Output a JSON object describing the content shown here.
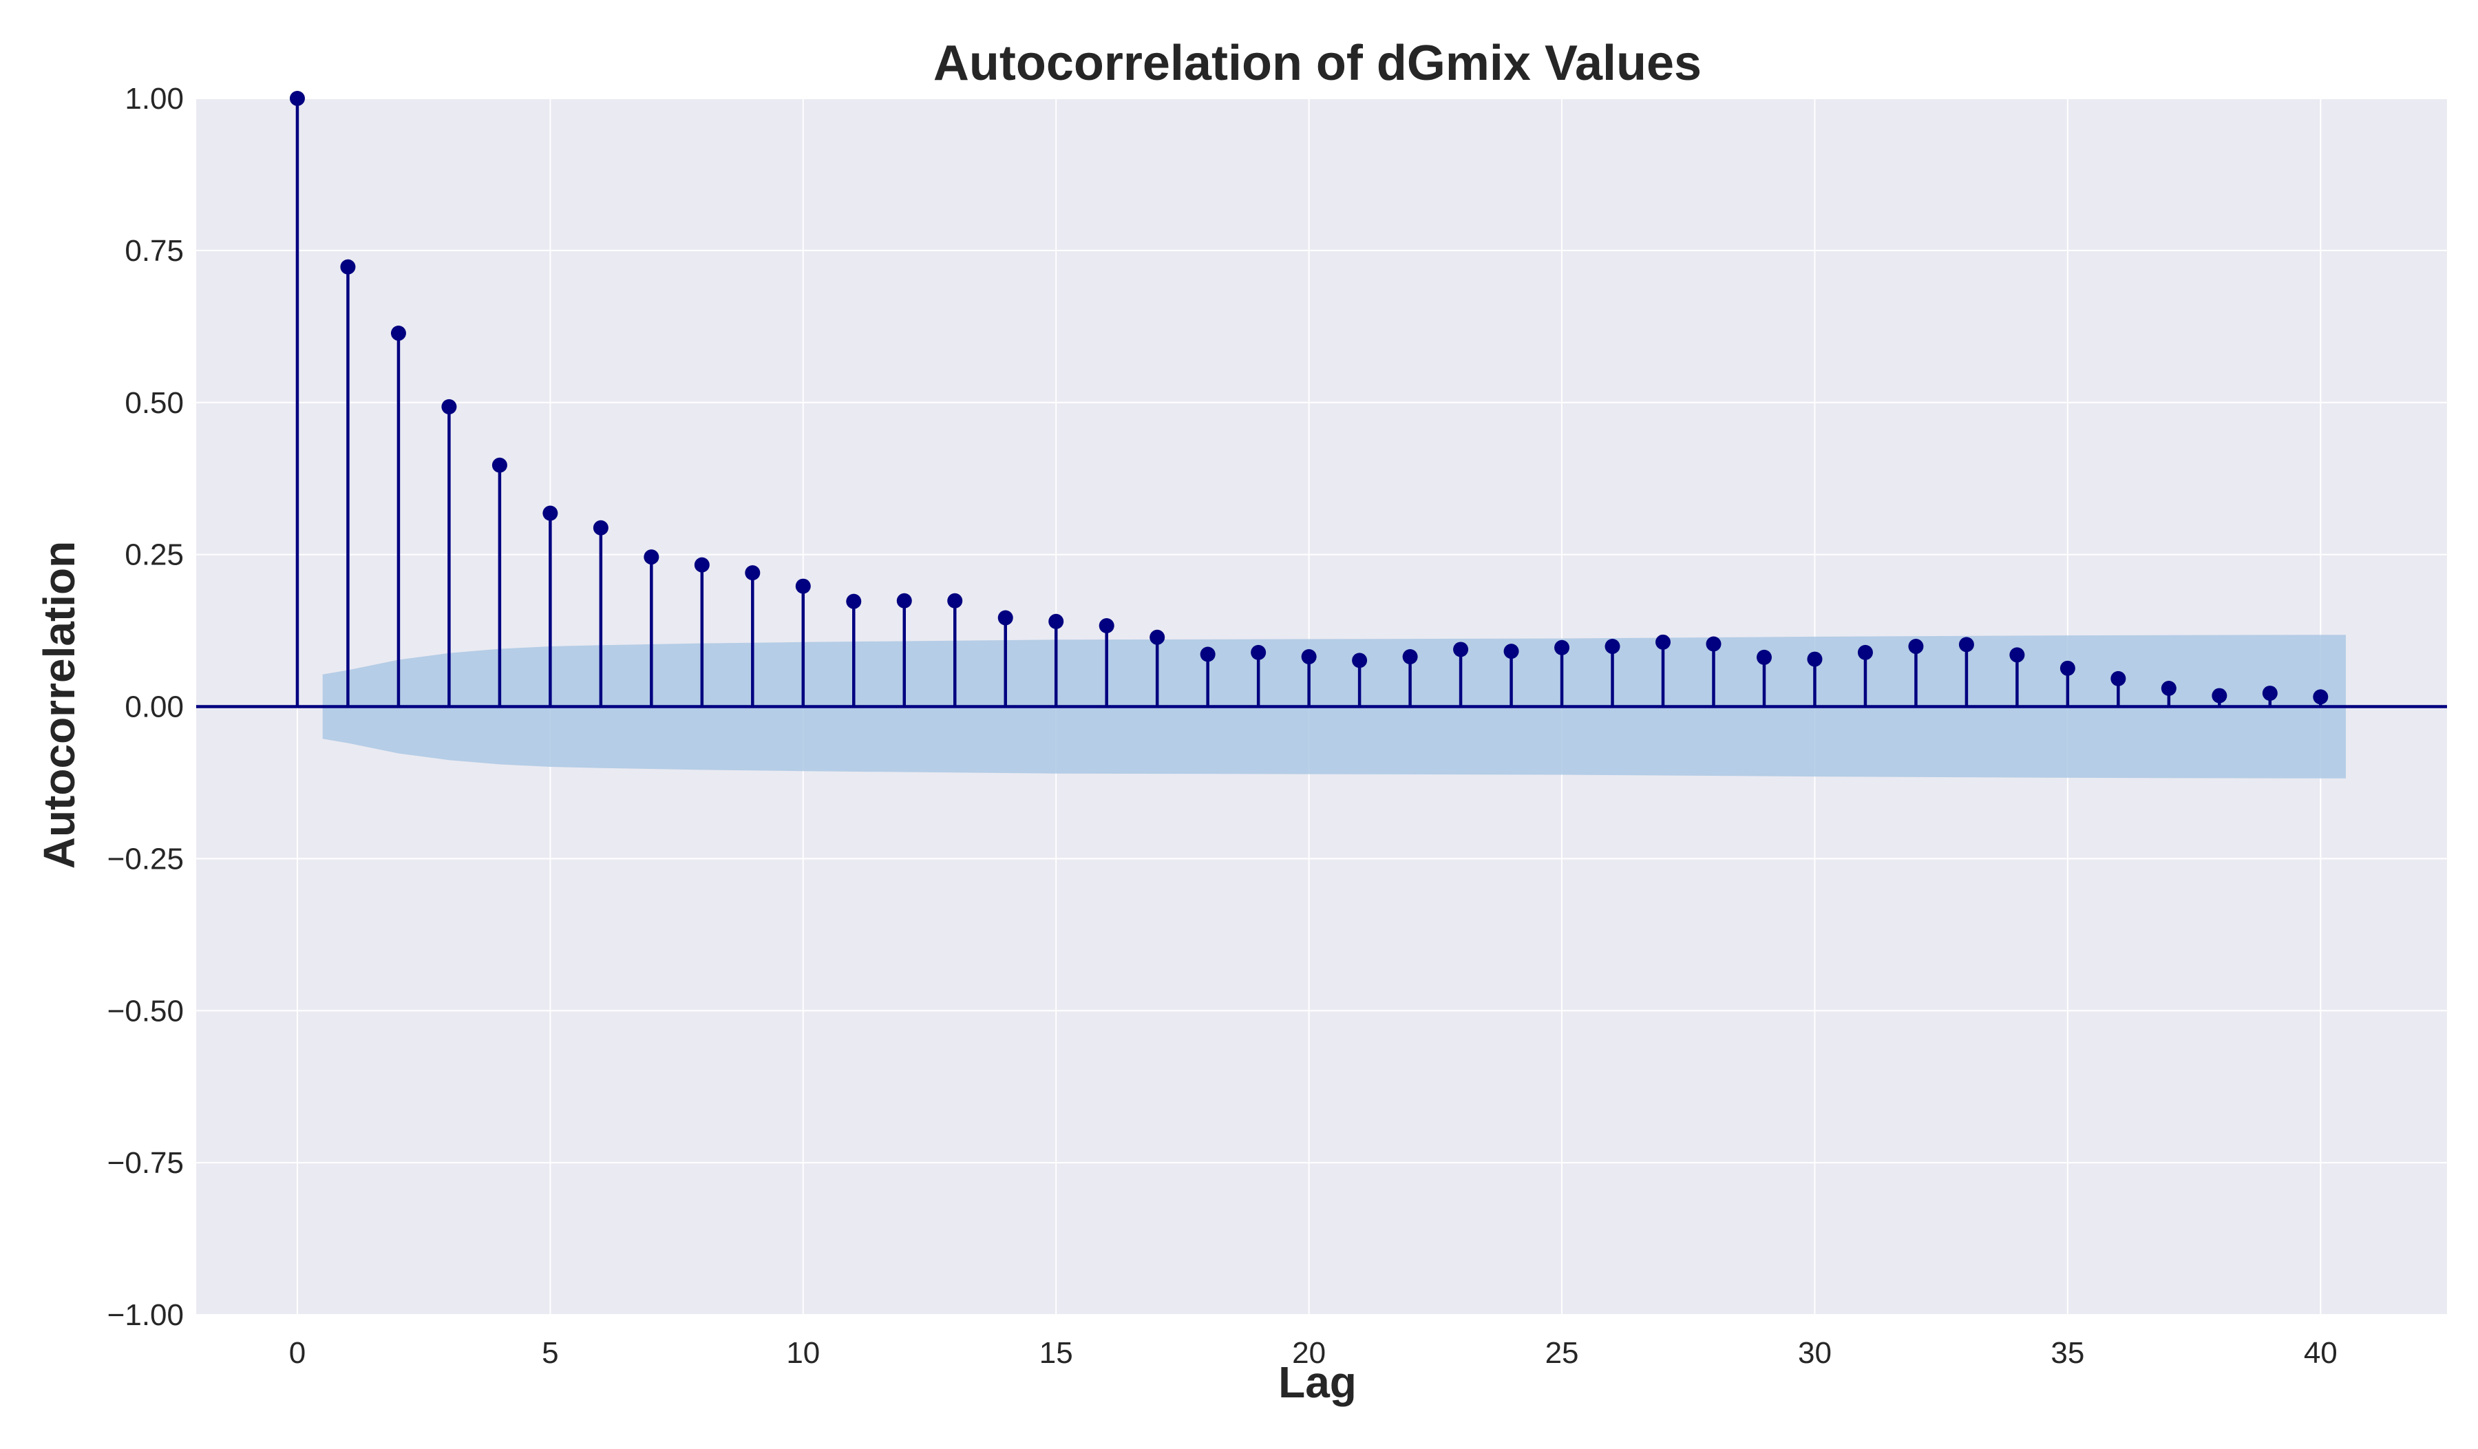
{
  "chart_data": {
    "type": "stem",
    "title": "Autocorrelation of dGmix Values",
    "xlabel": "Lag",
    "ylabel": "Autocorrelation",
    "xlim": [
      -2,
      42.5
    ],
    "ylim": [
      -1.0,
      1.0
    ],
    "x_ticks": [
      0,
      5,
      10,
      15,
      20,
      25,
      30,
      35,
      40
    ],
    "x_tick_labels": [
      "0",
      "5",
      "10",
      "15",
      "20",
      "25",
      "30",
      "35",
      "40"
    ],
    "y_ticks": [
      1.0,
      0.75,
      0.5,
      0.25,
      0.0,
      -0.25,
      -0.5,
      -0.75,
      -1.0
    ],
    "y_tick_labels": [
      "1.00",
      "0.75",
      "0.50",
      "0.25",
      "0.00",
      "−0.25",
      "−0.50",
      "−0.75",
      "−1.00"
    ],
    "grid": true,
    "lags": [
      0,
      1,
      2,
      3,
      4,
      5,
      6,
      7,
      8,
      9,
      10,
      11,
      12,
      13,
      14,
      15,
      16,
      17,
      18,
      19,
      20,
      21,
      22,
      23,
      24,
      25,
      26,
      27,
      28,
      29,
      30,
      31,
      32,
      33,
      34,
      35,
      36,
      37,
      38,
      39,
      40
    ],
    "values": [
      1.0,
      0.723,
      0.614,
      0.493,
      0.397,
      0.318,
      0.294,
      0.246,
      0.233,
      0.22,
      0.198,
      0.173,
      0.174,
      0.174,
      0.146,
      0.14,
      0.133,
      0.114,
      0.086,
      0.089,
      0.082,
      0.076,
      0.082,
      0.094,
      0.091,
      0.097,
      0.099,
      0.106,
      0.103,
      0.081,
      0.078,
      0.089,
      0.099,
      0.102,
      0.085,
      0.063,
      0.046,
      0.03,
      0.018,
      0.022,
      0.016
    ],
    "confidence_band": {
      "lags": [
        0.5,
        1,
        2,
        3,
        4,
        5,
        6,
        8,
        10,
        15,
        20,
        25,
        30,
        35,
        40,
        40.5
      ],
      "upper": [
        0.053,
        0.06,
        0.077,
        0.088,
        0.095,
        0.099,
        0.101,
        0.104,
        0.106,
        0.11,
        0.111,
        0.112,
        0.115,
        0.117,
        0.118,
        0.118
      ]
    },
    "colors": {
      "stem": "#000080",
      "band": "#a8c5e2",
      "plot_bg": "#eaeaf2",
      "grid": "#ffffff"
    }
  }
}
